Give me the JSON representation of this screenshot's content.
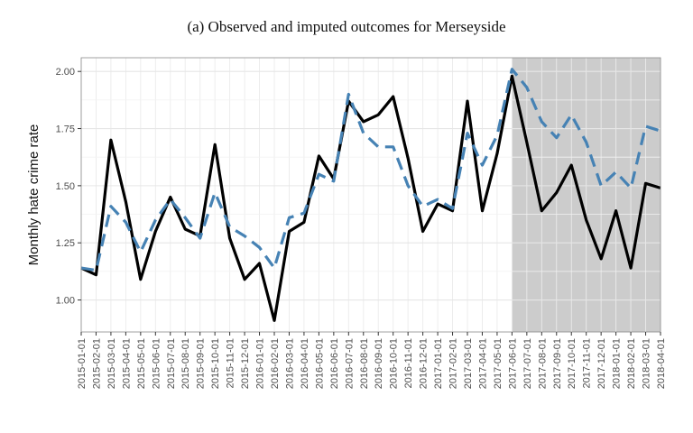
{
  "chart_data": {
    "type": "line",
    "title": "(a) Observed and imputed outcomes for Merseyside",
    "ylabel": "Monthly hate crime rate",
    "xlabel": "",
    "ylim": [
      0.86,
      2.06
    ],
    "y_ticks": [
      "1.00",
      "1.25",
      "1.50",
      "1.75",
      "2.00"
    ],
    "grid": true,
    "shaded_region": {
      "from": "2017-06-01",
      "to": "2018-04-01",
      "color": "#cccccc"
    },
    "x": [
      "2015-01-01",
      "2015-02-01",
      "2015-03-01",
      "2015-04-01",
      "2015-05-01",
      "2015-06-01",
      "2015-07-01",
      "2015-08-01",
      "2015-09-01",
      "2015-10-01",
      "2015-11-01",
      "2015-12-01",
      "2016-01-01",
      "2016-02-01",
      "2016-03-01",
      "2016-04-01",
      "2016-05-01",
      "2016-06-01",
      "2016-07-01",
      "2016-08-01",
      "2016-09-01",
      "2016-10-01",
      "2016-11-01",
      "2016-12-01",
      "2017-01-01",
      "2017-02-01",
      "2017-03-01",
      "2017-04-01",
      "2017-05-01",
      "2017-06-01",
      "2017-07-01",
      "2017-08-01",
      "2017-09-01",
      "2017-10-01",
      "2017-11-01",
      "2017-12-01",
      "2018-01-01",
      "2018-02-01",
      "2018-03-01",
      "2018-04-01"
    ],
    "series": [
      {
        "style": "solid",
        "color": "#000000",
        "values": [
          1.14,
          1.11,
          1.7,
          1.43,
          1.09,
          1.3,
          1.45,
          1.31,
          1.28,
          1.68,
          1.27,
          1.09,
          1.16,
          0.91,
          1.3,
          1.34,
          1.63,
          1.53,
          1.87,
          1.78,
          1.81,
          1.89,
          1.62,
          1.3,
          1.42,
          1.39,
          1.87,
          1.39,
          1.64,
          1.98,
          1.69,
          1.39,
          1.47,
          1.59,
          1.35,
          1.18,
          1.39,
          1.14,
          1.51,
          1.49
        ]
      },
      {
        "style": "dashed",
        "color": "#4682b4",
        "values": [
          1.14,
          1.13,
          1.41,
          1.34,
          1.21,
          1.35,
          1.44,
          1.36,
          1.27,
          1.47,
          1.32,
          1.28,
          1.23,
          1.14,
          1.36,
          1.38,
          1.55,
          1.52,
          1.9,
          1.73,
          1.67,
          1.67,
          1.5,
          1.41,
          1.44,
          1.4,
          1.73,
          1.59,
          1.72,
          2.01,
          1.93,
          1.78,
          1.71,
          1.81,
          1.69,
          1.5,
          1.56,
          1.49,
          1.76,
          1.74
        ]
      }
    ]
  }
}
